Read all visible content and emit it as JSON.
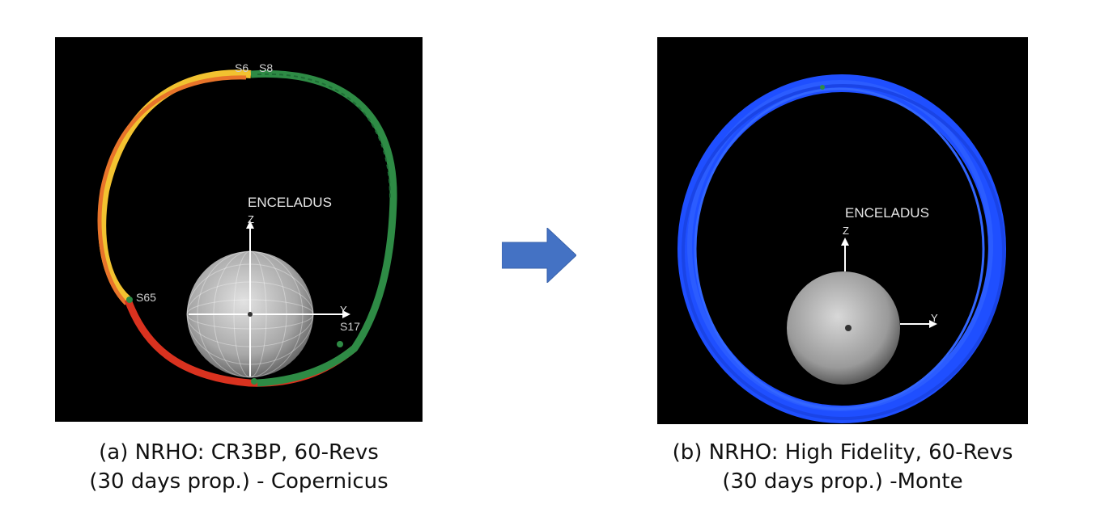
{
  "panel_a": {
    "body_label": "ENCELADUS",
    "z_axis": "Z",
    "y_axis": "Y",
    "marker_labels": [
      "S6",
      "S8",
      "S17",
      "S65"
    ],
    "caption_line1": "(a) NRHO: CR3BP, 60-Revs",
    "caption_line2": "(30 days prop.) - Copernicus",
    "colors": {
      "leg1": "#f2c230",
      "leg2": "#e8742a",
      "leg3": "#d9321f",
      "leg4": "#2e8b45"
    }
  },
  "panel_b": {
    "body_label": "ENCELADUS",
    "z_axis": "Z",
    "y_axis": "Y",
    "caption_line1": "(b) NRHO: High Fidelity, 60-Revs",
    "caption_line2": "(30 days prop.) -Monte",
    "colors": {
      "orbit": "#1f4fff"
    }
  },
  "arrow": {
    "icon": "right-arrow-icon",
    "color": "#4472c4"
  }
}
